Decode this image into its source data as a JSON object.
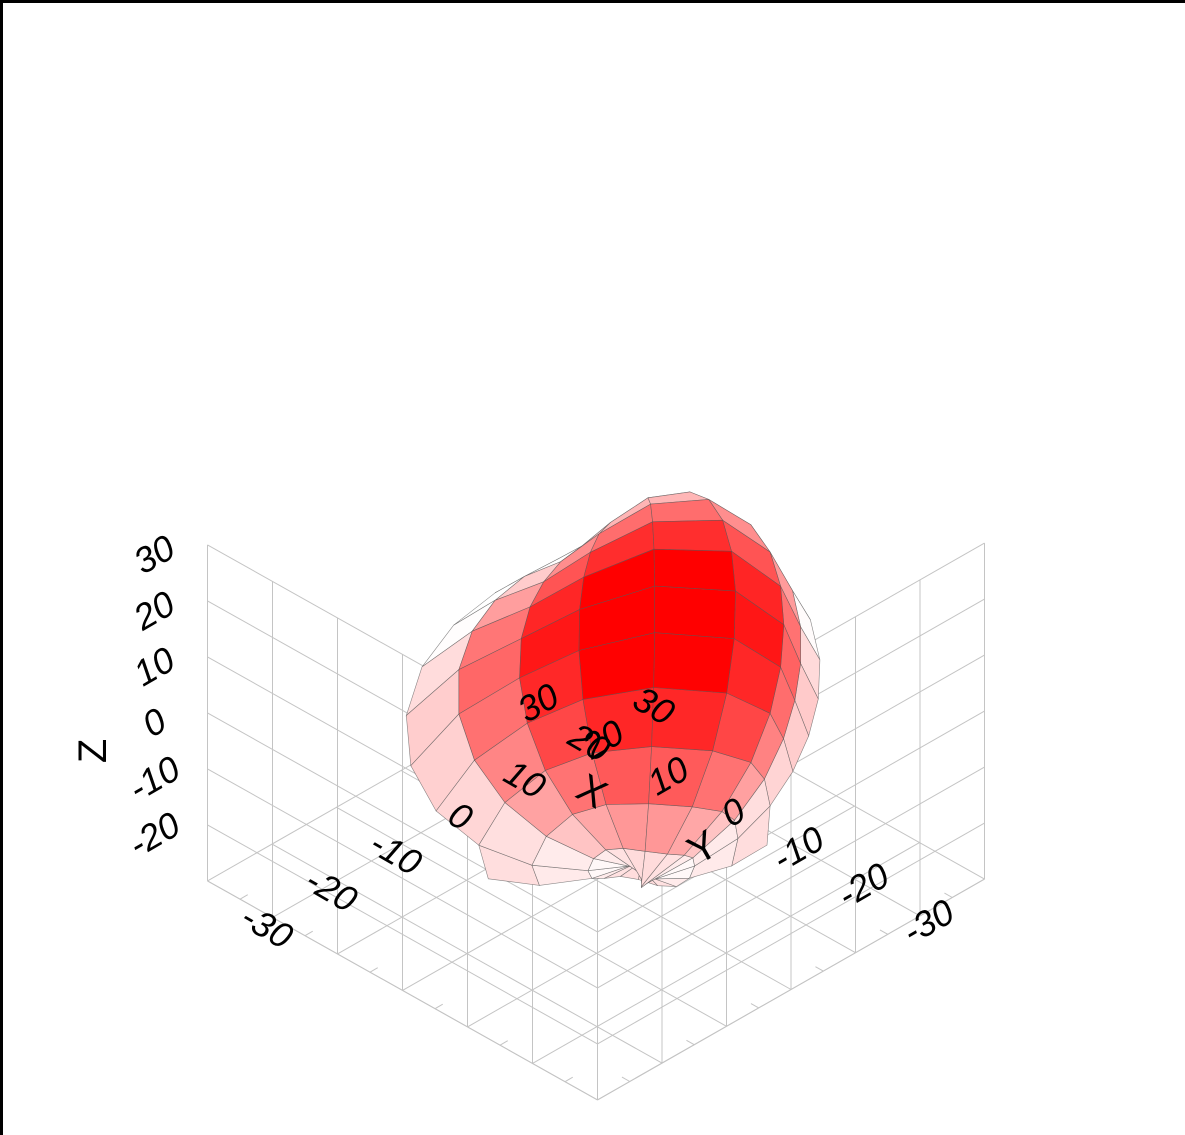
{
  "chart_data": {
    "type": "surface3d",
    "title": "",
    "xlabel": "X",
    "ylabel": "Y",
    "zlabel": "Z",
    "xlim": [
      -30,
      30
    ],
    "ylim": [
      -30,
      30
    ],
    "zlim": [
      -30,
      30
    ],
    "x_ticks": [
      "-30",
      "-20",
      "-10",
      "0",
      "10",
      "20",
      "30"
    ],
    "y_ticks": [
      "-30",
      "-20",
      "-10",
      "0",
      "10",
      "20",
      "30"
    ],
    "z_ticks": [
      "-20",
      "-10",
      "0",
      "10",
      "20",
      "30"
    ],
    "grid": true,
    "surface_color": "#ff0000",
    "highlight_color": "#ffffff",
    "mesh_color": "#555555",
    "surface": {
      "shape": "closed surface around the origin",
      "spans_approx": {
        "x": [
          -22,
          26
        ],
        "y": [
          -26,
          16
        ],
        "z": [
          -27,
          33
        ]
      }
    }
  }
}
